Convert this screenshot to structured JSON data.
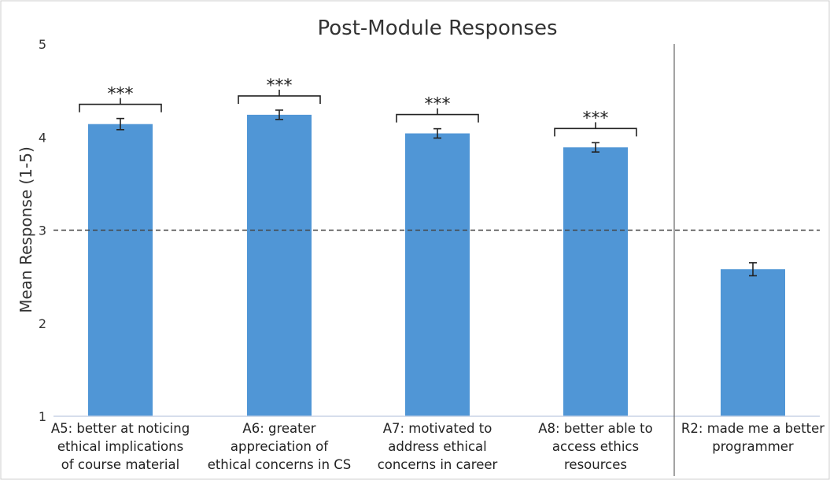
{
  "chart_data": {
    "type": "bar",
    "title": "Post-Module Responses",
    "ylabel": "Mean Response (1-5)",
    "xlabel": "",
    "ylim": [
      1,
      5
    ],
    "yticks": [
      1,
      2,
      3,
      4,
      5
    ],
    "reference_line": 3,
    "categories": [
      [
        "A5: better at noticing",
        "ethical implications",
        "of course material"
      ],
      [
        "A6: greater",
        "appreciation of",
        "ethical concerns in CS"
      ],
      [
        "A7: motivated to",
        "address ethical",
        "concerns in career"
      ],
      [
        "A8: better able to",
        "access ethics",
        "resources"
      ],
      [
        "R2: made me a better",
        "programmer"
      ]
    ],
    "values": [
      4.14,
      4.24,
      4.04,
      3.89,
      2.58
    ],
    "errors": [
      0.06,
      0.05,
      0.05,
      0.05,
      0.07
    ],
    "significance": [
      "***",
      "***",
      "***",
      "***",
      ""
    ],
    "separator_after_index": 3,
    "grid": false,
    "colors": {
      "bar": "#5096d6",
      "text": "#333333",
      "axis": "#c8d4e6",
      "reference": "#444444",
      "separator": "#666666"
    }
  }
}
